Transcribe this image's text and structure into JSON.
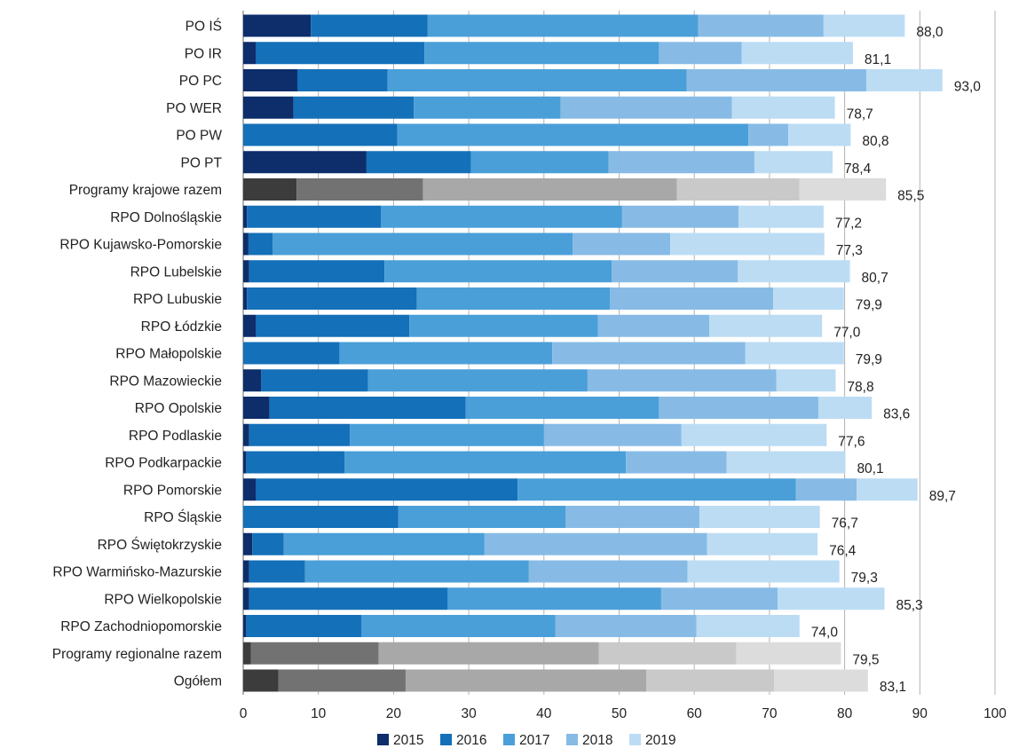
{
  "colors": {
    "blue": [
      "#0d2d6b",
      "#1470b8",
      "#4a9fd8",
      "#87bbe6",
      "#bcdcf4"
    ],
    "gray": [
      "#3c3c3c",
      "#727272",
      "#a8a8a8",
      "#c9c9c9",
      "#dcdcdc"
    ],
    "grid": "#b3b3b3",
    "axis": "#7f7f7f"
  },
  "chart_data": {
    "type": "bar",
    "orientation": "horizontal",
    "stacked": true,
    "xlim": [
      0,
      100
    ],
    "x_ticks": [
      "0",
      "10",
      "20",
      "30",
      "40",
      "50",
      "60",
      "70",
      "80",
      "90",
      "100"
    ],
    "grid": true,
    "legend_position": "bottom",
    "legend": [
      "2015",
      "2016",
      "2017",
      "2018",
      "2019"
    ],
    "categories": [
      "PO IŚ",
      "PO IR",
      "PO PC",
      "PO WER",
      "PO PW",
      "PO PT",
      "Programy krajowe razem",
      "RPO Dolnośląskie",
      "RPO Kujawsko-Pomorskie",
      "RPO Lubelskie",
      "RPO Lubuskie",
      "RPO Łódzkie",
      "RPO Małopolskie",
      "RPO Mazowieckie",
      "RPO Opolskie",
      "RPO Podlaskie",
      "RPO Podkarpackie",
      "RPO Pomorskie",
      "RPO Śląskie",
      "RPO Świętokrzyskie",
      "RPO Warmińsko-Mazurskie",
      "RPO Wielkopolskie",
      "RPO Zachodniopomorskie",
      "Programy regionalne razem",
      "Ogółem"
    ],
    "summary_rows": [
      "Programy krajowe razem",
      "Programy regionalne razem",
      "Ogółem"
    ],
    "series": [
      {
        "name": "2015",
        "values": [
          9.0,
          1.7,
          7.2,
          6.7,
          0.0,
          16.4,
          7.1,
          0.5,
          0.7,
          0.8,
          0.5,
          1.7,
          0.0,
          2.4,
          3.5,
          0.8,
          0.4,
          1.7,
          0.0,
          1.2,
          0.8,
          0.8,
          0.4,
          1.0,
          4.7
        ]
      },
      {
        "name": "2016",
        "values": [
          15.5,
          22.4,
          12.0,
          16.0,
          20.5,
          13.9,
          16.8,
          17.8,
          3.2,
          18.0,
          22.6,
          20.4,
          12.8,
          14.2,
          26.1,
          13.4,
          13.1,
          34.8,
          20.6,
          4.2,
          7.4,
          26.4,
          15.3,
          17.0,
          16.9
        ]
      },
      {
        "name": "2017",
        "values": [
          36.0,
          31.2,
          39.8,
          19.5,
          46.7,
          18.3,
          33.8,
          32.1,
          39.9,
          30.2,
          25.7,
          25.1,
          28.3,
          29.2,
          25.7,
          25.8,
          37.4,
          37.0,
          22.3,
          26.7,
          29.8,
          28.4,
          25.8,
          29.3,
          32.0
        ]
      },
      {
        "name": "2018",
        "values": [
          16.7,
          11.0,
          23.9,
          22.8,
          5.3,
          19.4,
          16.3,
          15.5,
          13.0,
          16.8,
          21.7,
          14.8,
          25.7,
          25.1,
          21.2,
          18.3,
          13.4,
          8.1,
          17.8,
          29.6,
          21.1,
          15.5,
          18.8,
          18.3,
          17.0
        ]
      },
      {
        "name": "2019",
        "values": [
          10.8,
          14.8,
          10.1,
          13.7,
          8.3,
          10.4,
          11.5,
          11.3,
          20.5,
          14.9,
          9.4,
          15.0,
          13.1,
          7.9,
          7.1,
          19.3,
          15.8,
          8.1,
          16.0,
          14.7,
          20.2,
          14.2,
          13.7,
          13.9,
          12.5
        ]
      }
    ],
    "totals": [
      "88,0",
      "81,1",
      "93,0",
      "78,7",
      "80,8",
      "78,4",
      "85,5",
      "77,2",
      "77,3",
      "80,7",
      "79,9",
      "77,0",
      "79,9",
      "78,8",
      "83,6",
      "77,6",
      "80,1",
      "89,7",
      "76,7",
      "76,4",
      "79,3",
      "85,3",
      "74,0",
      "79,5",
      "83,1"
    ]
  }
}
